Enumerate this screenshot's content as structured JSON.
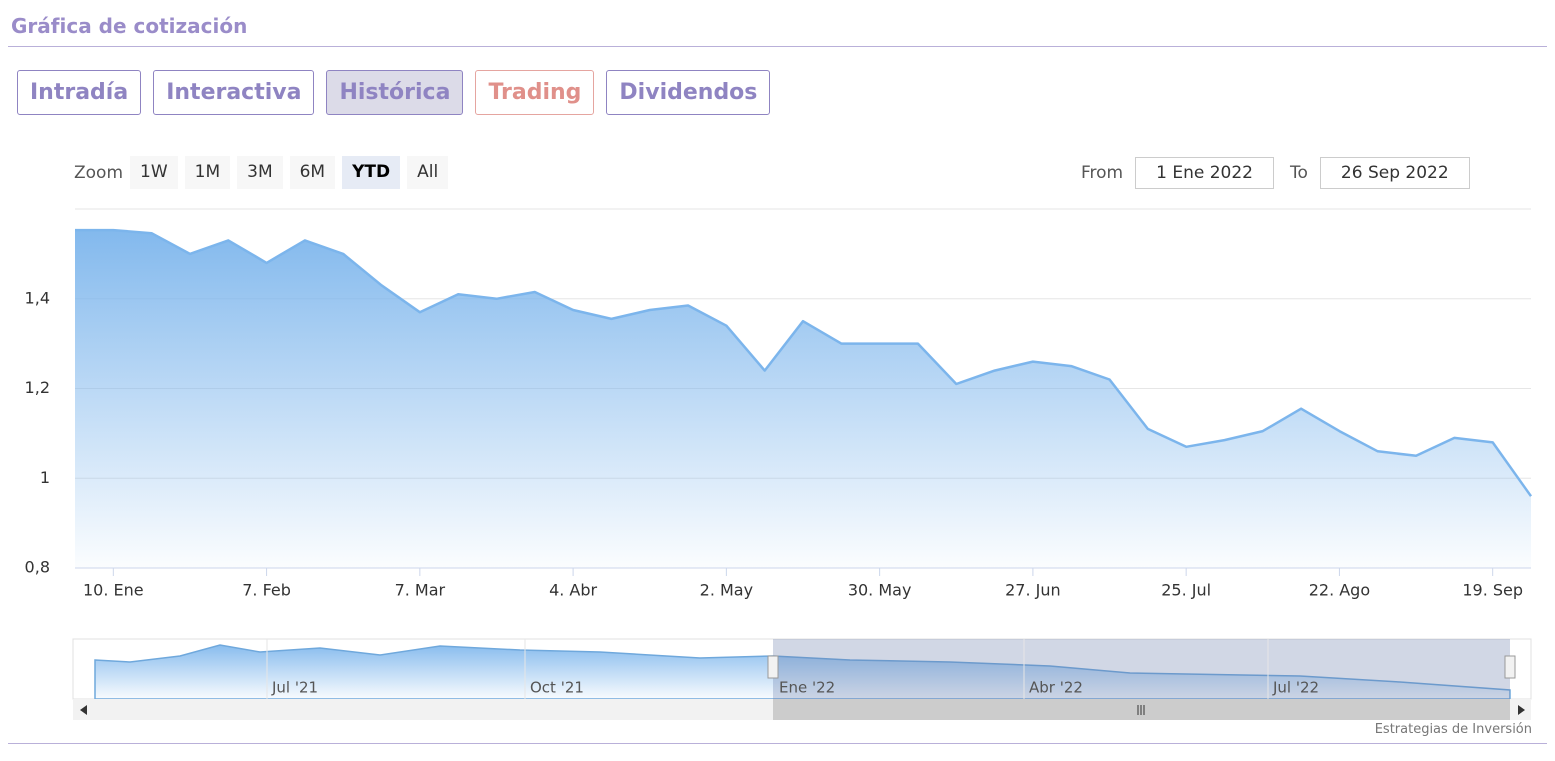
{
  "header": {
    "title": "Gráfica de cotización"
  },
  "tabs": [
    "Intradía",
    "Interactiva",
    "Histórica",
    "Trading",
    "Dividendos"
  ],
  "zoom": {
    "label": "Zoom",
    "buttons": [
      "1W",
      "1M",
      "3M",
      "6M",
      "YTD",
      "All"
    ]
  },
  "range": {
    "from_label": "From",
    "from": "1 Ene 2022",
    "to_label": "To",
    "to": "26 Sep 2022"
  },
  "chart_data": {
    "type": "area",
    "x": [
      "2022-01-03",
      "2022-01-10",
      "2022-01-17",
      "2022-01-24",
      "2022-01-31",
      "2022-02-07",
      "2022-02-14",
      "2022-02-21",
      "2022-02-28",
      "2022-03-07",
      "2022-03-14",
      "2022-03-21",
      "2022-03-28",
      "2022-04-04",
      "2022-04-11",
      "2022-04-18",
      "2022-04-25",
      "2022-05-02",
      "2022-05-09",
      "2022-05-16",
      "2022-05-23",
      "2022-05-30",
      "2022-06-06",
      "2022-06-13",
      "2022-06-20",
      "2022-06-27",
      "2022-07-04",
      "2022-07-11",
      "2022-07-18",
      "2022-07-25",
      "2022-08-01",
      "2022-08-08",
      "2022-08-15",
      "2022-08-22",
      "2022-08-29",
      "2022-09-05",
      "2022-09-12",
      "2022-09-19",
      "2022-09-26"
    ],
    "series": [
      {
        "color": "#7cb5ec",
        "values": [
          1.553,
          1.553,
          1.546,
          1.5,
          1.53,
          1.48,
          1.53,
          1.5,
          1.43,
          1.37,
          1.41,
          1.4,
          1.415,
          1.375,
          1.355,
          1.375,
          1.385,
          1.34,
          1.24,
          1.35,
          1.3,
          1.3,
          1.3,
          1.21,
          1.24,
          1.26,
          1.25,
          1.22,
          1.11,
          1.07,
          1.085,
          1.105,
          1.155,
          1.105,
          1.06,
          1.05,
          1.09,
          1.08,
          0.96
        ]
      }
    ],
    "ylim": [
      0.8,
      1.6
    ],
    "yticks": [
      {
        "value": 0.8,
        "label": "0,8"
      },
      1,
      {
        "value": 1.2,
        "label": "1,2"
      },
      {
        "value": 1.4,
        "label": "1,4"
      }
    ],
    "xticks": [
      {
        "value": "2022-01-10",
        "label": "10. Ene"
      },
      {
        "value": "2022-02-07",
        "label": "7. Feb"
      },
      {
        "value": "2022-03-07",
        "label": "7. Mar"
      },
      {
        "value": "2022-04-04",
        "label": "4. Abr"
      },
      {
        "value": "2022-05-02",
        "label": "2. May"
      },
      {
        "value": "2022-05-30",
        "label": "30. May"
      },
      {
        "value": "2022-06-27",
        "label": "27. Jun"
      },
      {
        "value": "2022-07-25",
        "label": "25. Jul"
      },
      {
        "value": "2022-08-22",
        "label": "22. Ago"
      },
      {
        "value": "2022-09-19",
        "label": "19. Sep"
      }
    ],
    "grid": true
  },
  "navigator": {
    "labels": [
      "Jul '21",
      "Oct '21",
      "Ene '22",
      "Abr '22",
      "Jul '22"
    ]
  },
  "credit": "Estrategias de Inversión"
}
